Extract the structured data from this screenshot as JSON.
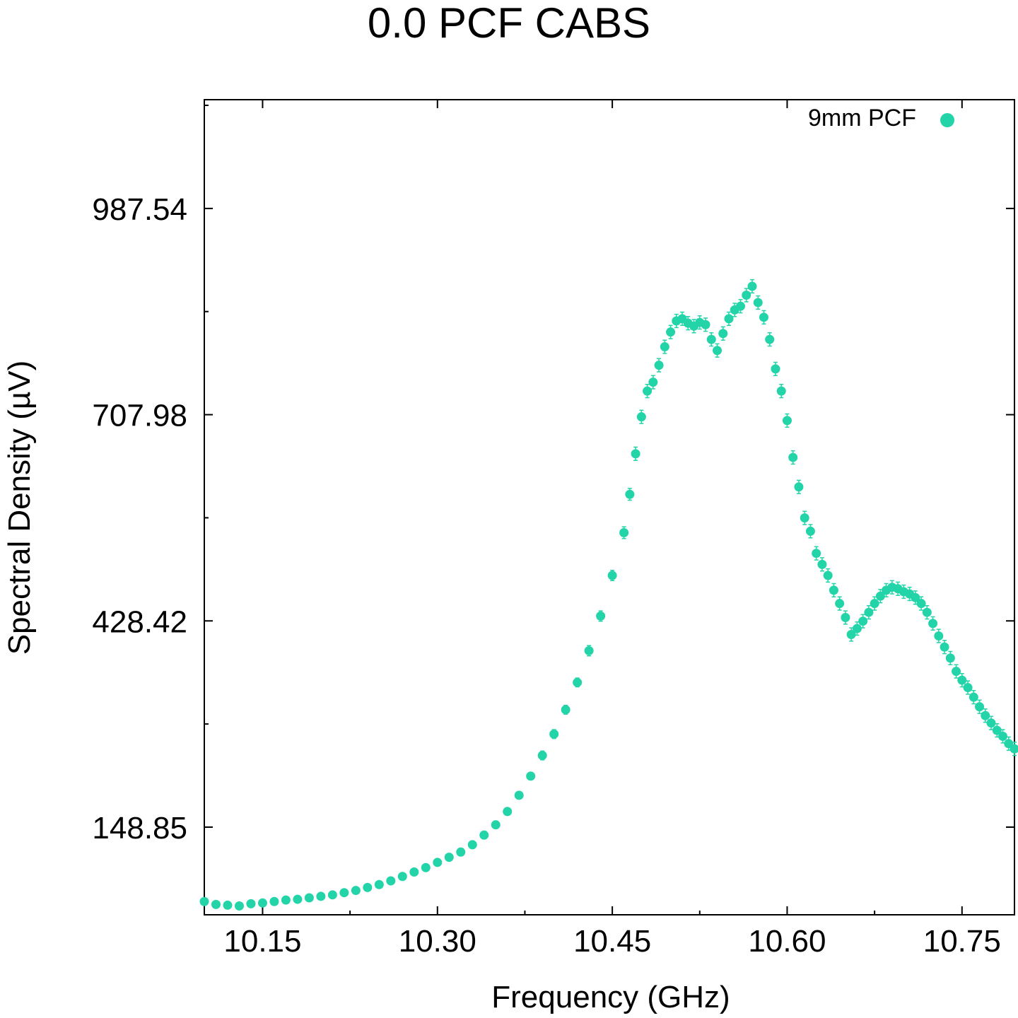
{
  "chart_data": {
    "type": "scatter",
    "title": "0.0 PCF CABS",
    "xlabel": "Frequency (GHz)",
    "ylabel": "Spectral Density (µV)",
    "xlim": [
      10.1,
      10.795
    ],
    "ylim": [
      30,
      1135
    ],
    "x_ticks": [
      "10.15",
      "10.30",
      "10.45",
      "10.60",
      "10.75"
    ],
    "x_tick_values": [
      10.15,
      10.3,
      10.45,
      10.6,
      10.75
    ],
    "y_ticks": [
      "148.85",
      "428.42",
      "707.98",
      "987.54"
    ],
    "y_tick_values": [
      148.85,
      428.42,
      707.98,
      987.54
    ],
    "grid": false,
    "legend_position": "top-right",
    "color": "#22d4a8",
    "series": [
      {
        "name": "9mm PCF",
        "points": [
          [
            10.1,
            48,
            4
          ],
          [
            10.11,
            44,
            4
          ],
          [
            10.12,
            43,
            4
          ],
          [
            10.13,
            42,
            4
          ],
          [
            10.14,
            45,
            4
          ],
          [
            10.15,
            46,
            4
          ],
          [
            10.16,
            48,
            4
          ],
          [
            10.17,
            50,
            4
          ],
          [
            10.18,
            51,
            4
          ],
          [
            10.19,
            53,
            4
          ],
          [
            10.2,
            55,
            4
          ],
          [
            10.21,
            57,
            4
          ],
          [
            10.22,
            60,
            4
          ],
          [
            10.23,
            63,
            4
          ],
          [
            10.24,
            67,
            4
          ],
          [
            10.25,
            71,
            4
          ],
          [
            10.26,
            76,
            4
          ],
          [
            10.27,
            82,
            4
          ],
          [
            10.28,
            88,
            4
          ],
          [
            10.29,
            94,
            4
          ],
          [
            10.3,
            101,
            4
          ],
          [
            10.31,
            108,
            5
          ],
          [
            10.32,
            115,
            5
          ],
          [
            10.33,
            125,
            5
          ],
          [
            10.34,
            138,
            5
          ],
          [
            10.35,
            152,
            5
          ],
          [
            10.36,
            170,
            5
          ],
          [
            10.37,
            192,
            5
          ],
          [
            10.38,
            218,
            5
          ],
          [
            10.39,
            246,
            6
          ],
          [
            10.4,
            275,
            6
          ],
          [
            10.41,
            308,
            6
          ],
          [
            10.42,
            345,
            6
          ],
          [
            10.43,
            388,
            7
          ],
          [
            10.44,
            435,
            7
          ],
          [
            10.45,
            490,
            7
          ],
          [
            10.46,
            548,
            8
          ],
          [
            10.465,
            600,
            8
          ],
          [
            10.47,
            655,
            9
          ],
          [
            10.475,
            705,
            9
          ],
          [
            10.48,
            740,
            9
          ],
          [
            10.485,
            752,
            9
          ],
          [
            10.49,
            775,
            9
          ],
          [
            10.495,
            800,
            9
          ],
          [
            10.5,
            820,
            9
          ],
          [
            10.505,
            835,
            9
          ],
          [
            10.51,
            838,
            9
          ],
          [
            10.515,
            832,
            9
          ],
          [
            10.52,
            828,
            9
          ],
          [
            10.525,
            833,
            9
          ],
          [
            10.53,
            830,
            9
          ],
          [
            10.535,
            810,
            9
          ],
          [
            10.54,
            795,
            9
          ],
          [
            10.545,
            818,
            9
          ],
          [
            10.55,
            838,
            9
          ],
          [
            10.555,
            850,
            9
          ],
          [
            10.56,
            855,
            9
          ],
          [
            10.565,
            870,
            9
          ],
          [
            10.57,
            882,
            9
          ],
          [
            10.575,
            860,
            9
          ],
          [
            10.58,
            840,
            9
          ],
          [
            10.585,
            810,
            9
          ],
          [
            10.59,
            770,
            9
          ],
          [
            10.595,
            740,
            9
          ],
          [
            10.6,
            700,
            9
          ],
          [
            10.605,
            650,
            9
          ],
          [
            10.61,
            610,
            9
          ],
          [
            10.615,
            568,
            9
          ],
          [
            10.62,
            550,
            9
          ],
          [
            10.625,
            520,
            9
          ],
          [
            10.63,
            505,
            9
          ],
          [
            10.635,
            490,
            9
          ],
          [
            10.64,
            470,
            9
          ],
          [
            10.645,
            452,
            9
          ],
          [
            10.65,
            433,
            9
          ],
          [
            10.655,
            410,
            9
          ],
          [
            10.66,
            418,
            9
          ],
          [
            10.665,
            428,
            9
          ],
          [
            10.67,
            440,
            9
          ],
          [
            10.675,
            452,
            9
          ],
          [
            10.68,
            462,
            9
          ],
          [
            10.685,
            470,
            9
          ],
          [
            10.69,
            474,
            9
          ],
          [
            10.695,
            472,
            9
          ],
          [
            10.7,
            468,
            9
          ],
          [
            10.705,
            465,
            9
          ],
          [
            10.71,
            460,
            9
          ],
          [
            10.715,
            452,
            9
          ],
          [
            10.72,
            440,
            9
          ],
          [
            10.725,
            425,
            9
          ],
          [
            10.73,
            408,
            9
          ],
          [
            10.735,
            393,
            9
          ],
          [
            10.74,
            378,
            9
          ],
          [
            10.745,
            360,
            9
          ],
          [
            10.75,
            348,
            9
          ],
          [
            10.755,
            338,
            9
          ],
          [
            10.76,
            325,
            9
          ],
          [
            10.765,
            312,
            9
          ],
          [
            10.77,
            300,
            9
          ],
          [
            10.775,
            290,
            9
          ],
          [
            10.78,
            280,
            9
          ],
          [
            10.785,
            272,
            9
          ],
          [
            10.79,
            262,
            9
          ],
          [
            10.795,
            255,
            9
          ]
        ]
      }
    ]
  }
}
